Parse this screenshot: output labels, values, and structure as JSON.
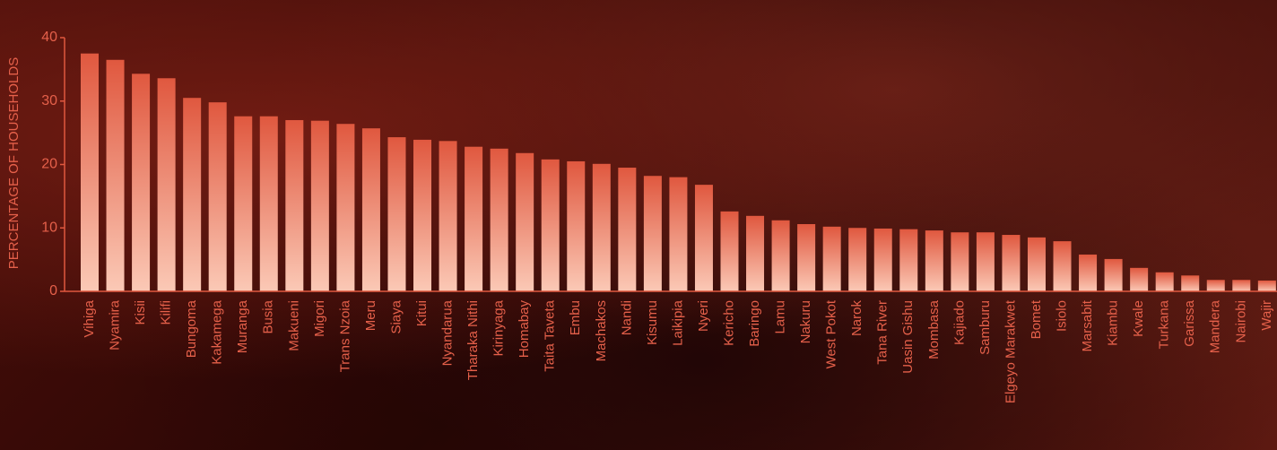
{
  "chart_data": {
    "type": "bar",
    "y_label": "PERCENTAGE OF HOUSEHOLDS",
    "categories": [
      "Vihiga",
      "Nyamira",
      "Kisii",
      "Kilifi",
      "Bungoma",
      "Kakamega",
      "Muranga",
      "Busia",
      "Makueni",
      "Migori",
      "Trans Nzoia",
      "Meru",
      "Siaya",
      "Kitui",
      "Nyandarua",
      "Tharaka Nithi",
      "Kirinyaga",
      "Homabay",
      "Taita Taveta",
      "Embu",
      "Machakos",
      "Nandi",
      "Kisumu",
      "Laikipia",
      "Nyeri",
      "Kericho",
      "Baringo",
      "Lamu",
      "Nakuru",
      "West Pokot",
      "Narok",
      "Tana River",
      "Uasin Gishu",
      "Mombasa",
      "Kajiado",
      "Samburu",
      "Elgeyo Marakwet",
      "Bomet",
      "Isiolo",
      "Marsabit",
      "Kiambu",
      "Kwale",
      "Turkana",
      "Garissa",
      "Mandera",
      "Nairobi",
      "Wajir"
    ],
    "values": [
      37.5,
      36.5,
      34.3,
      33.6,
      30.5,
      29.8,
      27.6,
      27.6,
      27.0,
      26.9,
      26.4,
      25.7,
      24.3,
      23.9,
      23.7,
      22.8,
      22.5,
      21.8,
      20.8,
      20.5,
      20.1,
      19.5,
      18.2,
      18.0,
      16.8,
      12.6,
      11.9,
      11.2,
      10.6,
      10.2,
      10.0,
      9.9,
      9.8,
      9.6,
      9.3,
      9.3,
      8.9,
      8.5,
      7.9,
      5.8,
      5.1,
      3.7,
      3.0,
      2.5,
      1.8,
      1.8,
      1.7
    ],
    "color": "#e0583f",
    "ylim": [
      0,
      40
    ],
    "yticks": [
      0,
      10,
      20,
      30,
      40
    ]
  }
}
